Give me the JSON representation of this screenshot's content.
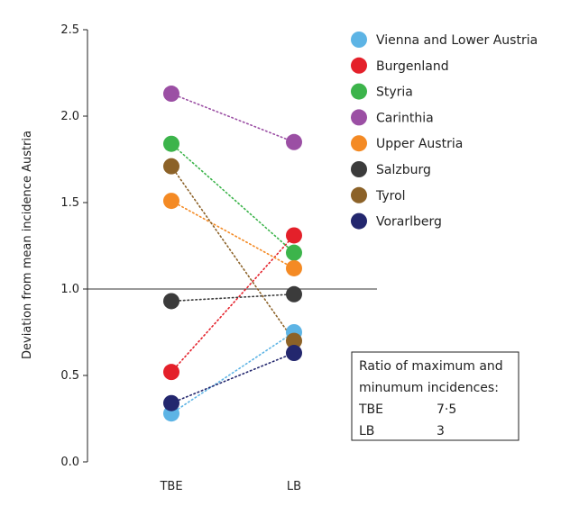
{
  "chart_data": {
    "type": "scatter",
    "categories": [
      "TBE",
      "LB"
    ],
    "ylabel": "Deviation from mean incidence Austria",
    "xlabel": "",
    "ylim": [
      0.0,
      2.5
    ],
    "y_ticks": [
      "0.0",
      "0.5",
      "1.0",
      "1.5",
      "2.0",
      "2.5"
    ],
    "reference_line": 1.0,
    "connector_style": "dotted",
    "legend_position": "top-right",
    "series": [
      {
        "name": "Vienna and Lower Austria",
        "color": "#5db4e5",
        "values": [
          0.28,
          0.75
        ]
      },
      {
        "name": "Burgenland",
        "color": "#e4202a",
        "values": [
          0.52,
          1.31
        ]
      },
      {
        "name": "Styria",
        "color": "#3cb44b",
        "values": [
          1.84,
          1.21
        ]
      },
      {
        "name": "Carinthia",
        "color": "#9b4fa4",
        "values": [
          2.13,
          1.85
        ]
      },
      {
        "name": "Upper Austria",
        "color": "#f48a24",
        "values": [
          1.51,
          1.12
        ]
      },
      {
        "name": "Salzburg",
        "color": "#3b3b3b",
        "values": [
          0.93,
          0.97
        ]
      },
      {
        "name": "Tyrol",
        "color": "#8c6228",
        "values": [
          1.71,
          0.7
        ]
      },
      {
        "name": "Vorarlberg",
        "color": "#23276e",
        "values": [
          0.34,
          0.63
        ]
      }
    ],
    "ratio_box": {
      "title_line1": "Ratio of maximum and",
      "title_line2": "minumum  incidences:",
      "rows": [
        {
          "label": "TBE",
          "value": "7·5"
        },
        {
          "label": "LB",
          "value": "3"
        }
      ]
    }
  }
}
